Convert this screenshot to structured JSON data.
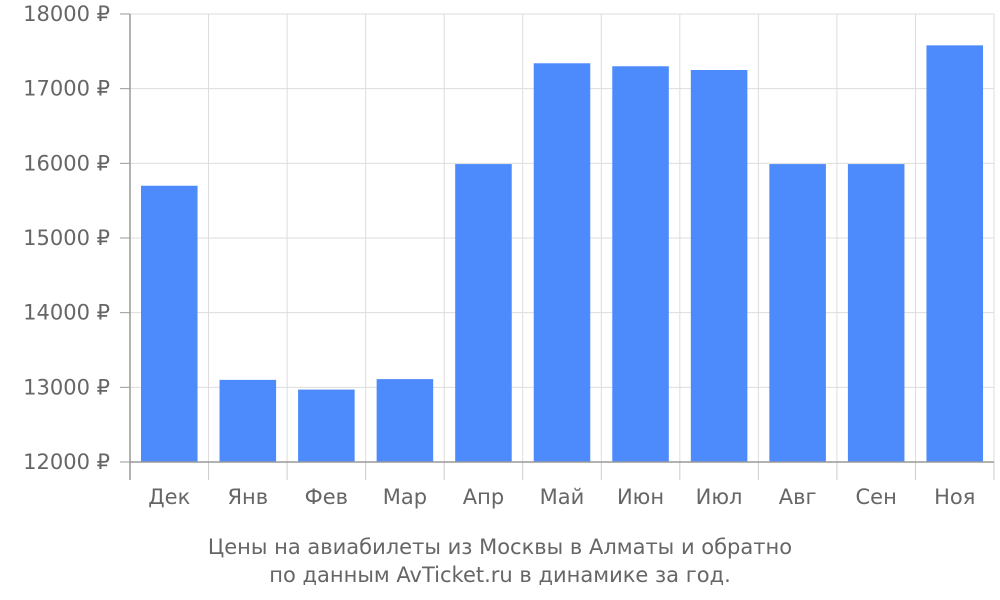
{
  "chart_data": {
    "type": "bar",
    "categories": [
      "Дек",
      "Янв",
      "Фев",
      "Мар",
      "Апр",
      "Май",
      "Июн",
      "Июл",
      "Авг",
      "Сен",
      "Ноя"
    ],
    "values": [
      15700,
      13100,
      12970,
      13110,
      15990,
      17340,
      17300,
      17250,
      15990,
      15990,
      17580
    ],
    "ylim": [
      12000,
      18000
    ],
    "yticks": [
      12000,
      13000,
      14000,
      15000,
      16000,
      17000,
      18000
    ],
    "ytick_suffix": " ₽",
    "bar_color": "#4d8bfc",
    "grid": true,
    "caption_line1": "Цены на авиабилеты из Москвы в Алматы и обратно",
    "caption_line2": "по данным AvTicket.ru в динамике за год."
  }
}
